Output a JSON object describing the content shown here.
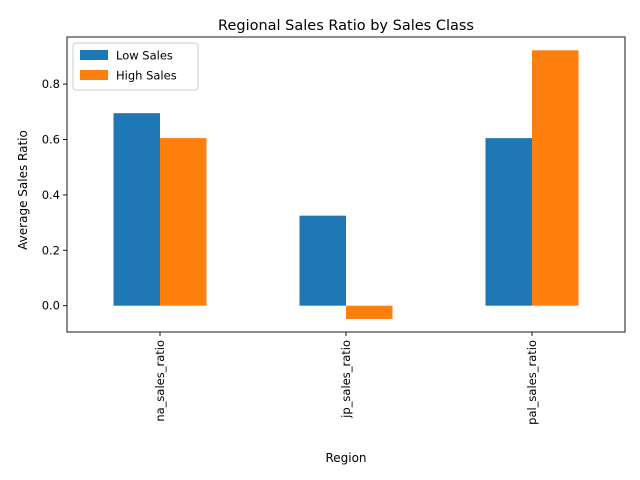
{
  "chart_data": {
    "type": "bar",
    "title": "Regional Sales Ratio by Sales Class",
    "xlabel": "Region",
    "ylabel": "Average Sales Ratio",
    "categories": [
      "na_sales_ratio",
      "jp_sales_ratio",
      "pal_sales_ratio"
    ],
    "series": [
      {
        "name": "Low Sales",
        "color": "#1f77b4",
        "values": [
          0.695,
          0.325,
          0.605
        ]
      },
      {
        "name": "High Sales",
        "color": "#ff7f0e",
        "values": [
          0.605,
          -0.048,
          0.922
        ]
      }
    ],
    "ylim": [
      -0.095,
      0.97
    ],
    "yticks": [
      0.0,
      0.2,
      0.4,
      0.6,
      0.8
    ],
    "ytick_labels": [
      "0.0",
      "0.2",
      "0.4",
      "0.6",
      "0.8"
    ],
    "grid": false,
    "legend_position": "top-left"
  }
}
